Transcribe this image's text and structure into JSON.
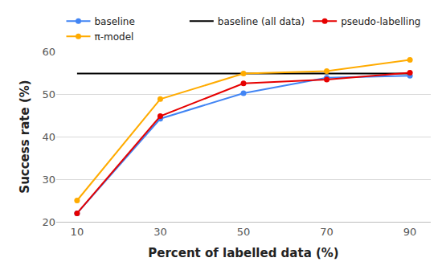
{
  "chart_data": {
    "type": "line",
    "x_label": "Percent of labelled data (%)",
    "y_label": "Success rate (%)",
    "xlim": [
      5,
      95
    ],
    "xticks": [
      10,
      30,
      50,
      70,
      90
    ],
    "ylim": [
      20,
      60
    ],
    "yticks": [
      20,
      30,
      40,
      50,
      60
    ],
    "grid": true,
    "legend": "top",
    "series": [
      {
        "name": "baseline",
        "color": "#4285f4",
        "marker": "circle",
        "line_style": "solid",
        "x": [
          10,
          30,
          50,
          70,
          90
        ],
        "values": [
          22,
          44.2,
          50.2,
          53.8,
          54.3
        ]
      },
      {
        "name": "baseline (all data)",
        "color": "#000000",
        "marker": "none",
        "line_style": "solid",
        "x": [
          10,
          90
        ],
        "values": [
          54.8,
          54.8
        ]
      },
      {
        "name": "pseudo-labelling",
        "color": "#e60000",
        "marker": "circle",
        "line_style": "solid",
        "x": [
          10,
          30,
          50,
          70,
          90
        ],
        "values": [
          22,
          44.8,
          52.5,
          53.4,
          55.0
        ]
      },
      {
        "name": "π-model",
        "color": "#ffab00",
        "marker": "circle",
        "line_style": "solid",
        "x": [
          10,
          30,
          50,
          70,
          90
        ],
        "values": [
          25,
          48.8,
          54.8,
          55.4,
          58.0
        ]
      }
    ]
  }
}
